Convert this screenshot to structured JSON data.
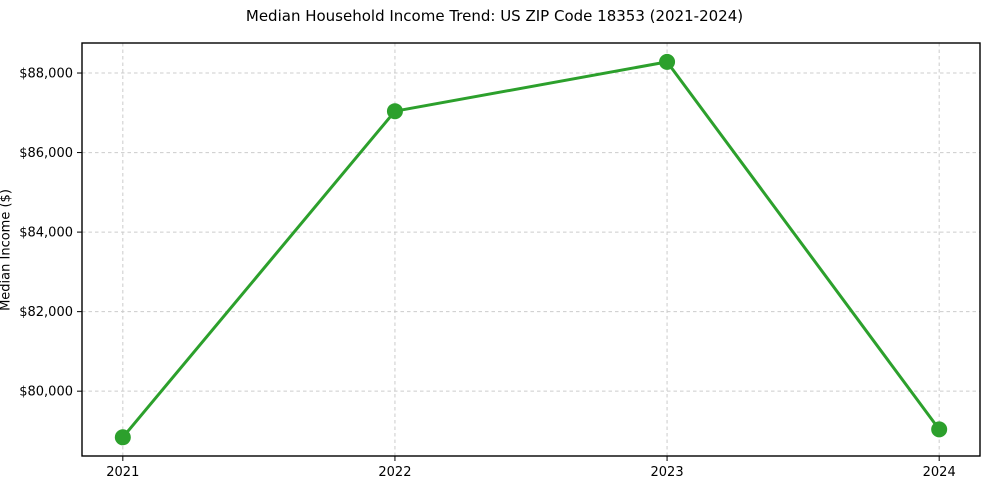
{
  "chart_data": {
    "type": "line",
    "title": "Median Household Income Trend: US ZIP Code 18353 (2021-2024)",
    "ylabel": "Median Income ($)",
    "xlabel": "",
    "x": [
      2021,
      2022,
      2023,
      2024
    ],
    "x_tick_labels": [
      "2021",
      "2022",
      "2023",
      "2024"
    ],
    "values": [
      78840,
      87040,
      88280,
      79040
    ],
    "yticks": [
      {
        "value": 80000,
        "label": "$80,000"
      },
      {
        "value": 82000,
        "label": "$82,000"
      },
      {
        "value": 84000,
        "label": "$84,000"
      },
      {
        "value": 86000,
        "label": "$86,000"
      },
      {
        "value": 88000,
        "label": "$88,000"
      }
    ],
    "xlim": [
      2020.85,
      2024.15
    ],
    "ylim": [
      78370,
      88755
    ],
    "grid": "dashed, both axes",
    "legend_position": "none",
    "line_color": "#2ca02c",
    "marker": "circle",
    "marker_radius": 8,
    "grid_color": "#cccccc",
    "spine_color": "#000000",
    "background_color": "#ffffff"
  }
}
